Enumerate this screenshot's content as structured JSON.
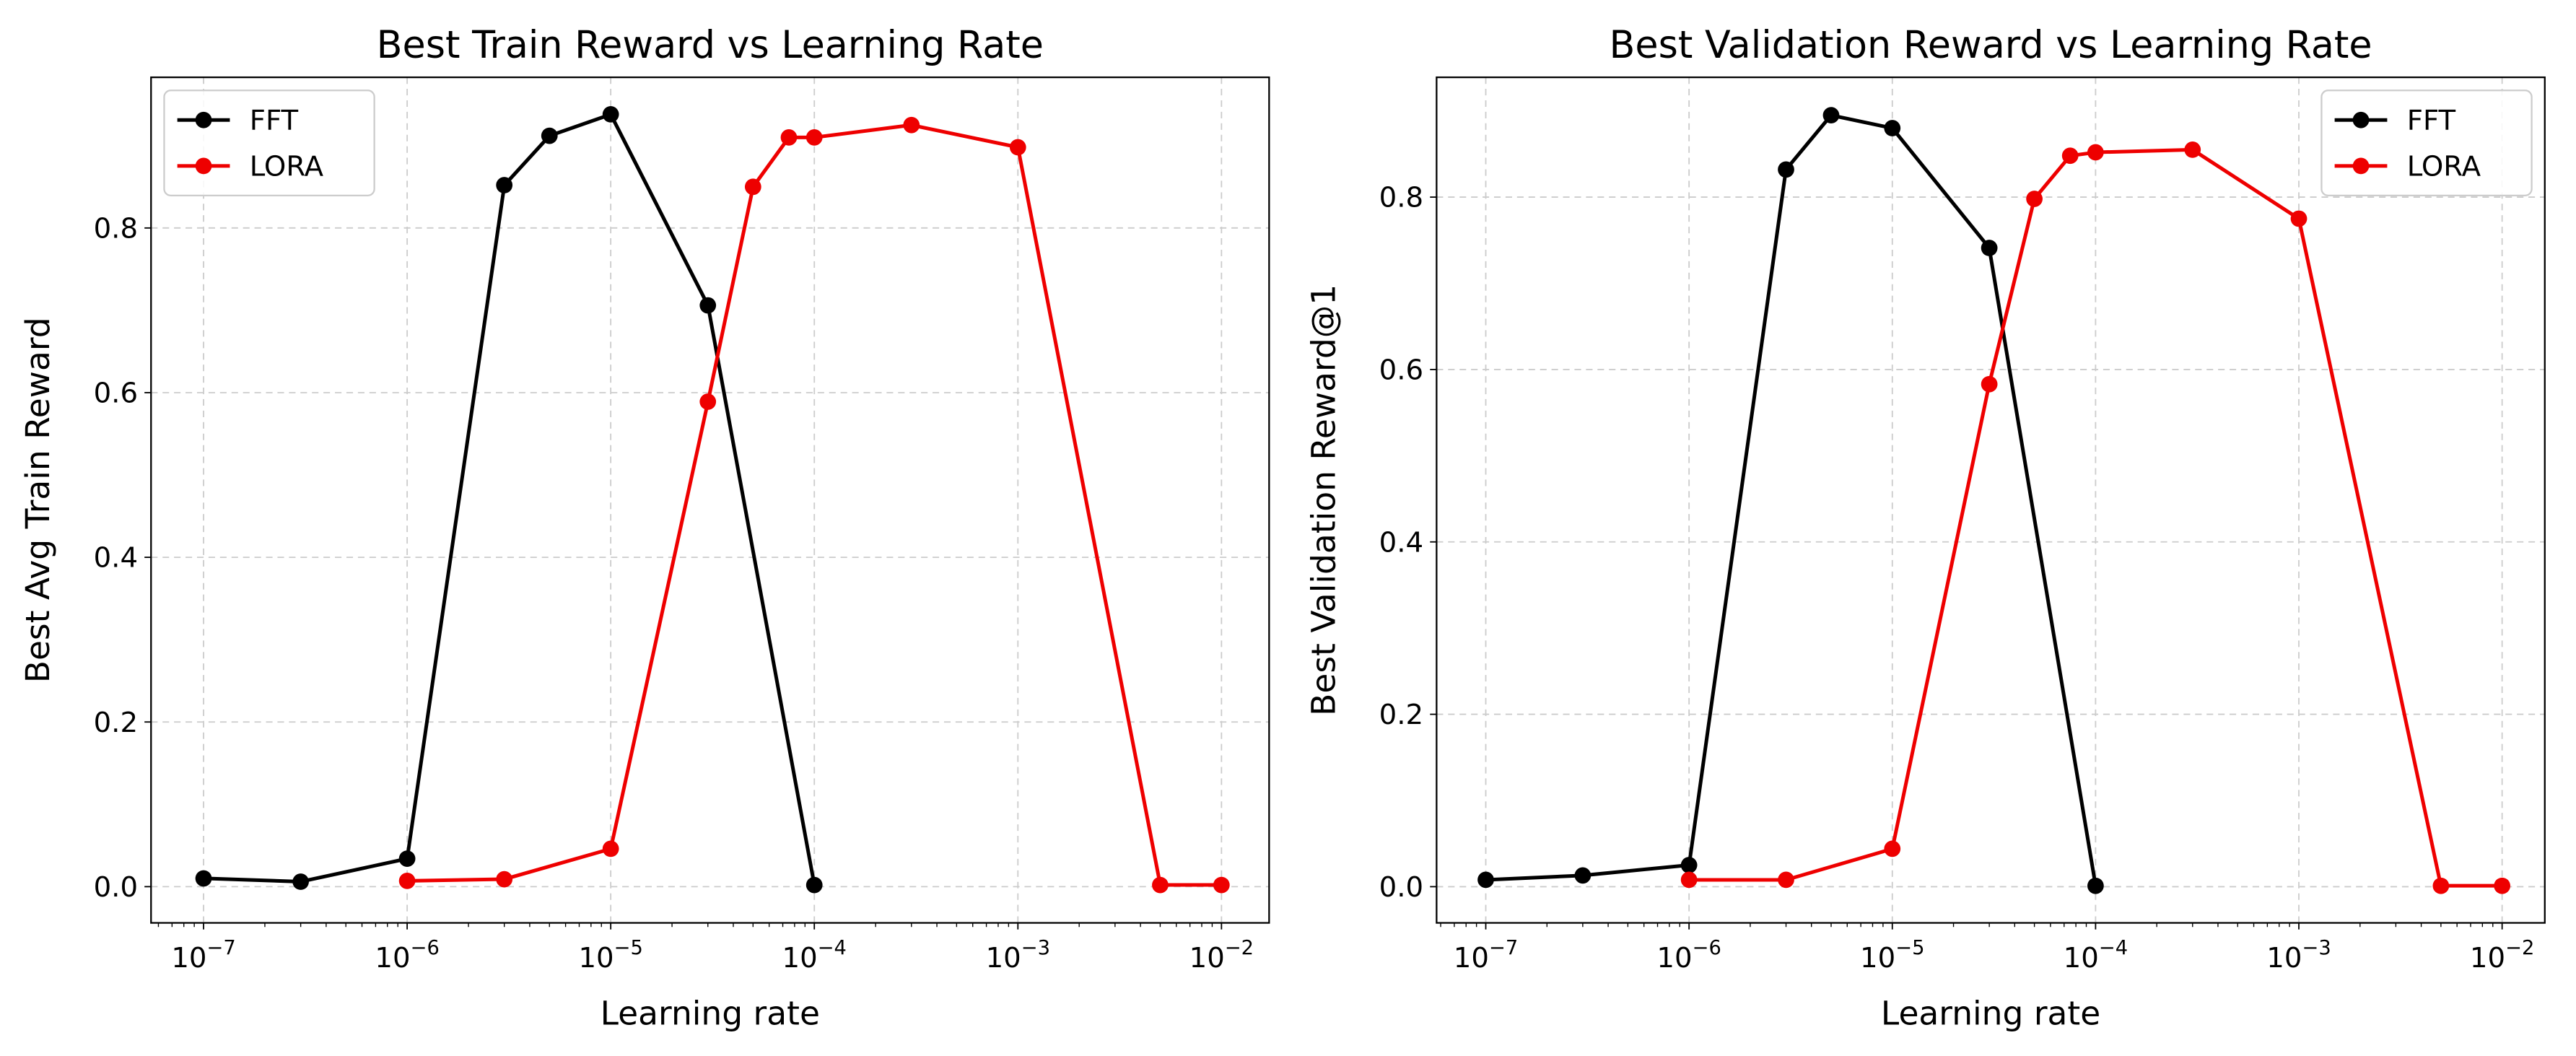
{
  "chart_data": [
    {
      "type": "line",
      "title": "Best Train Reward vs Learning Rate",
      "xlabel": "Learning rate",
      "ylabel": "Best Avg Train Reward",
      "xscale": "log",
      "xlim": [
        -7.258,
        -1.766
      ],
      "ylim": [
        -0.044,
        0.983
      ],
      "yticks": [
        0.0,
        0.2,
        0.4,
        0.6,
        0.8
      ],
      "ytick_labels": [
        "0.0",
        "0.2",
        "0.4",
        "0.6",
        "0.8"
      ],
      "xtick_exponents": [
        "-7",
        "-6",
        "-5",
        "-4",
        "-3",
        "-2"
      ],
      "grid": true,
      "legend": "top-left",
      "series": [
        {
          "name": "FFT",
          "color": "#000000",
          "x": [
            1e-07,
            3e-07,
            1e-06,
            3e-06,
            5e-06,
            1e-05,
            3e-05,
            0.0001
          ],
          "y": [
            0.01,
            0.006,
            0.034,
            0.852,
            0.912,
            0.938,
            0.706,
            0.002
          ]
        },
        {
          "name": "LORA",
          "color": "#ee0000",
          "x": [
            1e-06,
            3e-06,
            1e-05,
            3e-05,
            5e-05,
            7.5e-05,
            0.0001,
            0.0003,
            0.001,
            0.005,
            0.01
          ],
          "y": [
            0.007,
            0.009,
            0.046,
            0.589,
            0.85,
            0.91,
            0.91,
            0.925,
            0.898,
            0.002,
            0.002
          ]
        }
      ]
    },
    {
      "type": "line",
      "title": "Best Validation Reward vs Learning Rate",
      "xlabel": "Learning rate",
      "ylabel": "Best Validation Reward@1",
      "xscale": "log",
      "xlim": [
        -7.242,
        -1.79
      ],
      "ylim": [
        -0.042,
        0.939
      ],
      "yticks": [
        0.0,
        0.2,
        0.4,
        0.6,
        0.8
      ],
      "ytick_labels": [
        "0.0",
        "0.2",
        "0.4",
        "0.6",
        "0.8"
      ],
      "xtick_exponents": [
        "-7",
        "-6",
        "-5",
        "-4",
        "-3",
        "-2"
      ],
      "grid": true,
      "legend": "top-right",
      "series": [
        {
          "name": "FFT",
          "color": "#000000",
          "x": [
            1e-07,
            3e-07,
            1e-06,
            3e-06,
            5e-06,
            1e-05,
            3e-05,
            0.0001
          ],
          "y": [
            0.008,
            0.013,
            0.025,
            0.832,
            0.895,
            0.88,
            0.741,
            0.001
          ]
        },
        {
          "name": "LORA",
          "color": "#ee0000",
          "x": [
            1e-06,
            3e-06,
            1e-05,
            3e-05,
            5e-05,
            7.5e-05,
            0.0001,
            0.0003,
            0.001,
            0.005,
            0.01
          ],
          "y": [
            0.008,
            0.008,
            0.044,
            0.583,
            0.798,
            0.848,
            0.852,
            0.855,
            0.775,
            0.001,
            0.001
          ]
        }
      ]
    }
  ]
}
